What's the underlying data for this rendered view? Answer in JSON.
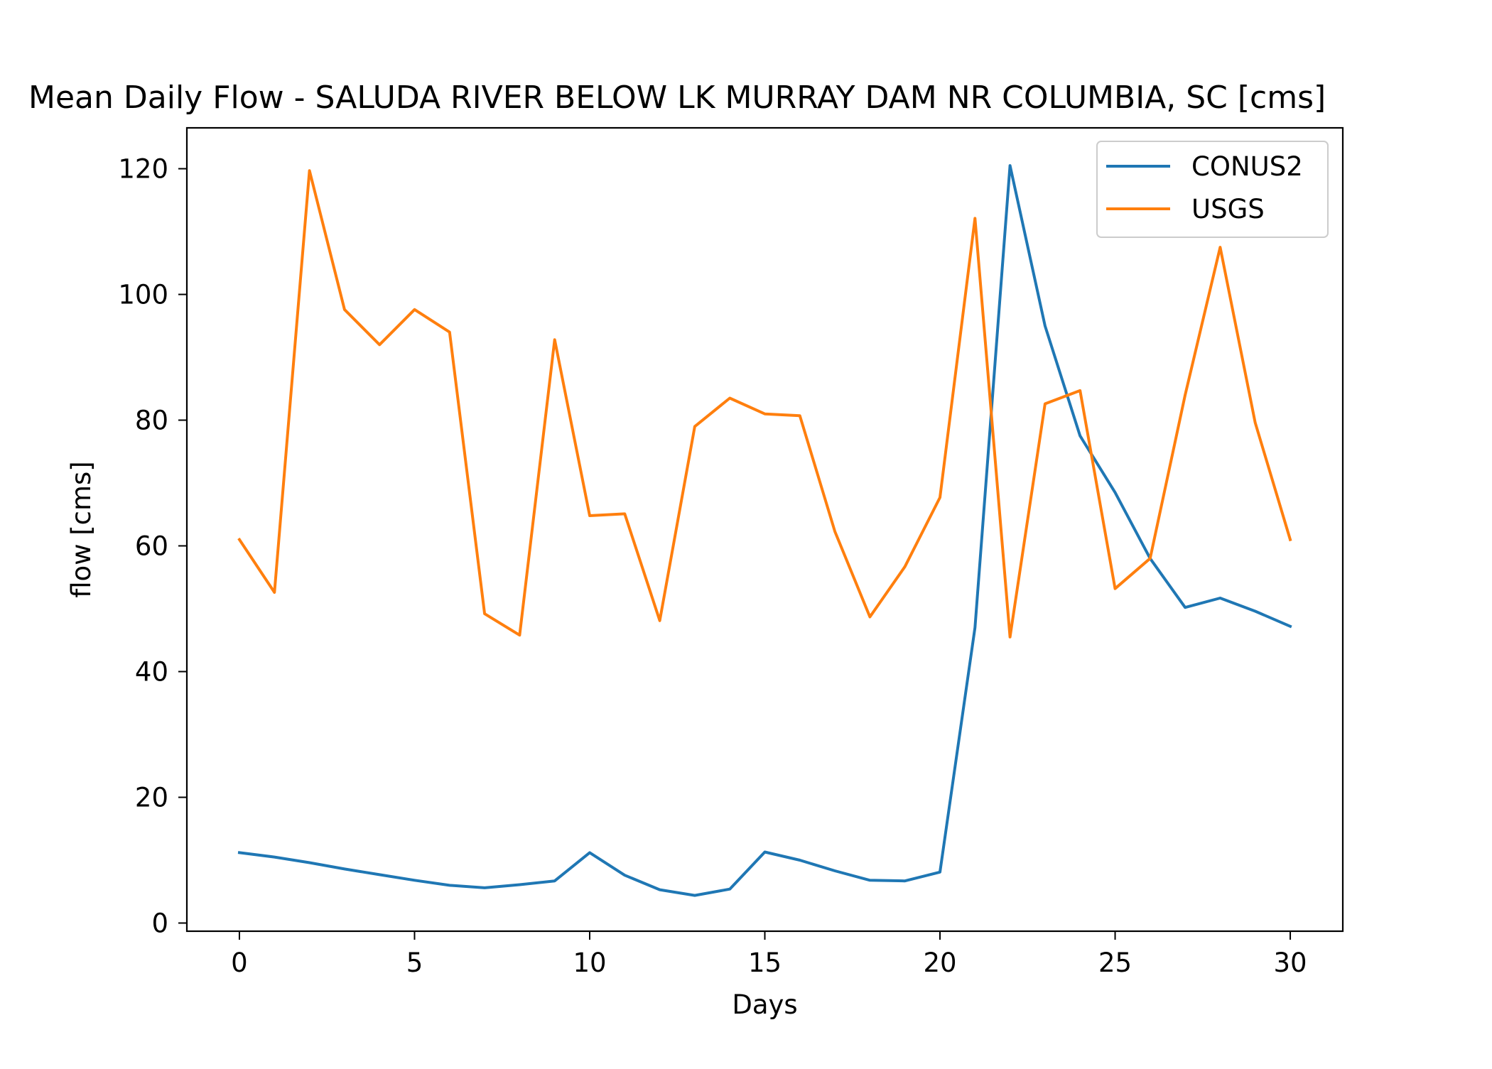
{
  "chart_data": {
    "type": "line",
    "title": "Mean Daily Flow - SALUDA RIVER BELOW LK MURRAY DAM NR COLUMBIA, SC [cms]",
    "xlabel": "Days",
    "ylabel": "flow [cms]",
    "xlim": [
      -1.5,
      31.5
    ],
    "ylim": [
      -1.3,
      126.5
    ],
    "xticks": [
      0,
      5,
      10,
      15,
      20,
      25,
      30
    ],
    "yticks": [
      0,
      20,
      40,
      60,
      80,
      100,
      120
    ],
    "grid": false,
    "legend_position": "top-right",
    "x": [
      0,
      1,
      2,
      3,
      4,
      5,
      6,
      7,
      8,
      9,
      10,
      11,
      12,
      13,
      14,
      15,
      16,
      17,
      18,
      19,
      20,
      21,
      22,
      23,
      24,
      25,
      26,
      27,
      28,
      29,
      30
    ],
    "series": [
      {
        "name": "CONUS2",
        "color": "#1f77b4",
        "values": [
          11.2,
          10.5,
          9.6,
          8.6,
          7.7,
          6.8,
          6.0,
          5.6,
          6.1,
          6.7,
          11.2,
          7.6,
          5.3,
          4.4,
          5.4,
          11.3,
          10.0,
          8.3,
          6.8,
          6.7,
          8.1,
          47.0,
          120.5,
          95.0,
          77.5,
          68.5,
          58.0,
          50.2,
          51.7,
          49.6,
          47.2
        ]
      },
      {
        "name": "USGS",
        "color": "#ff7f0e",
        "values": [
          61.0,
          52.6,
          119.7,
          97.6,
          92.0,
          97.6,
          94.0,
          49.2,
          45.8,
          92.8,
          64.8,
          65.1,
          48.1,
          79.0,
          83.5,
          81.0,
          80.7,
          62.3,
          48.7,
          56.7,
          67.7,
          112.1,
          45.5,
          82.6,
          84.7,
          53.2,
          58.0,
          84.0,
          107.5,
          79.6,
          61.0
        ]
      }
    ]
  }
}
